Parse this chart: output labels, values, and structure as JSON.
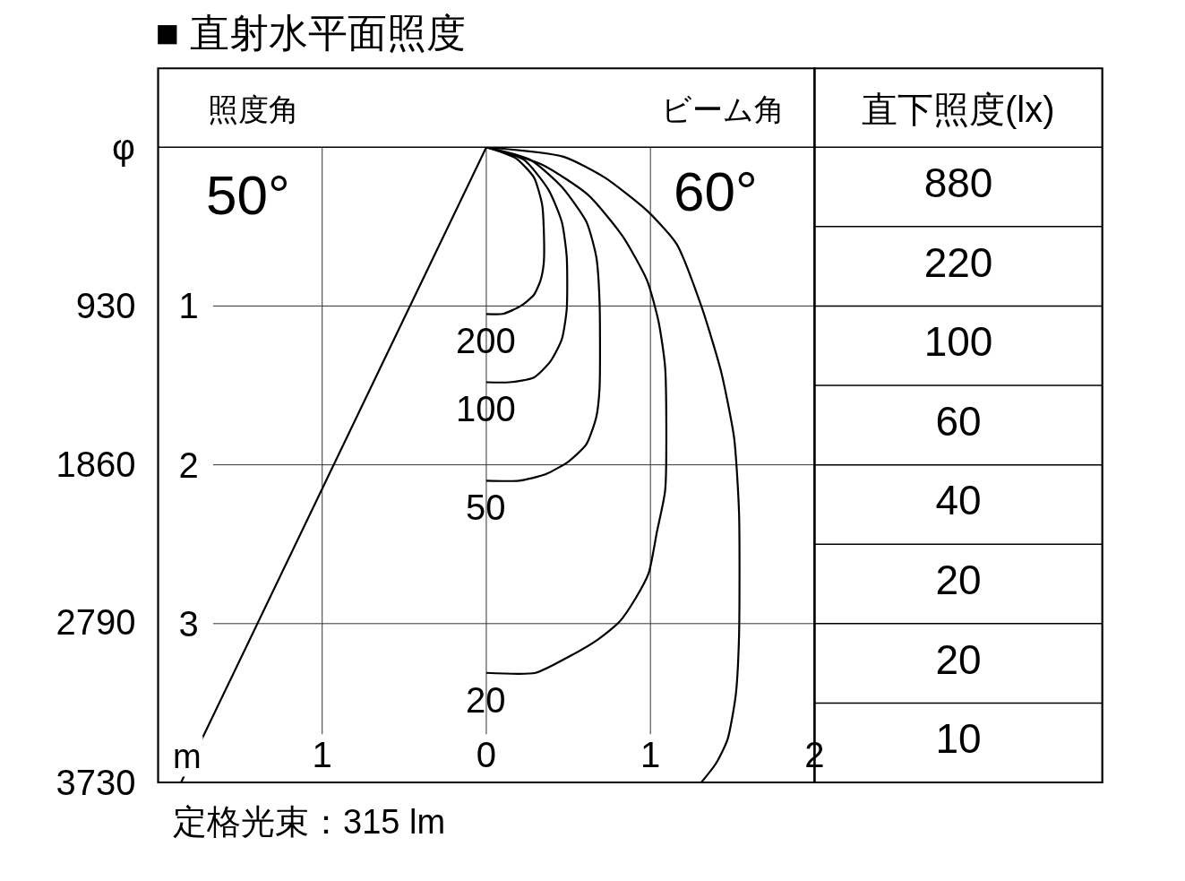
{
  "chart_data": [
    {
      "type": "line",
      "title": "■ 直射水平面照度",
      "xlabel": "m",
      "y2label": "φ",
      "annotations": [
        "照度角",
        "50°",
        "ビーム角",
        "60°",
        "定格光束：315 lm"
      ],
      "xlim": [
        -2,
        2
      ],
      "xticks": [
        {
          "value": -1,
          "label": "1"
        },
        0,
        1,
        2
      ],
      "ylim": [
        4,
        0
      ],
      "yticks": [
        1,
        2,
        3
      ],
      "y2lim": [
        3730,
        0
      ],
      "y2ticks": [
        930,
        1860,
        2790,
        3730
      ],
      "grid": true,
      "series": [
        {
          "name": "200",
          "color": "#000000",
          "x": [
            0,
            0.18,
            0.29,
            0.34,
            0.35,
            0.35,
            0.33,
            0.29,
            0.21,
            0.1,
            0
          ],
          "values": [
            0,
            0.07,
            0.19,
            0.36,
            0.51,
            0.73,
            0.84,
            0.93,
            1.0,
            1.05,
            1.05
          ]
        },
        {
          "name": "100",
          "color": "#000000",
          "x": [
            0,
            0.23,
            0.38,
            0.46,
            0.49,
            0.49,
            0.46,
            0.39,
            0.29,
            0.14,
            0
          ],
          "values": [
            0,
            0.08,
            0.27,
            0.47,
            0.69,
            1.02,
            1.21,
            1.35,
            1.45,
            1.48,
            1.48
          ]
        },
        {
          "name": "50",
          "color": "#000000",
          "x": [
            0,
            0.27,
            0.46,
            0.61,
            0.67,
            0.69,
            0.69,
            0.67,
            0.61,
            0.5,
            0.36,
            0.2,
            0
          ],
          "values": [
            0,
            0.08,
            0.25,
            0.47,
            0.69,
            0.97,
            1.52,
            1.7,
            1.87,
            1.98,
            2.06,
            2.1,
            2.1
          ]
        },
        {
          "name": "20",
          "color": "#000000",
          "x": [
            0,
            0.34,
            0.62,
            0.83,
            0.98,
            1.05,
            1.09,
            1.09,
            1.04,
            0.99,
            0.91,
            0.81,
            0.68,
            0.5,
            0.3,
            0
          ],
          "values": [
            0,
            0.11,
            0.3,
            0.56,
            0.84,
            1.1,
            1.39,
            2.16,
            2.42,
            2.68,
            2.84,
            2.99,
            3.1,
            3.21,
            3.31,
            3.31
          ]
        },
        {
          "color": "#000000",
          "x": [
            0,
            0.47,
            0.72,
            0.98,
            1.16,
            1.31,
            1.43,
            1.51,
            1.54,
            1.54,
            1.52,
            1.47,
            1.4,
            1.31
          ],
          "values": [
            0,
            0.06,
            0.19,
            0.4,
            0.61,
            1.0,
            1.41,
            1.83,
            2.3,
            3.08,
            3.45,
            3.73,
            3.88,
            4.0
          ]
        },
        {
          "color": "#000000",
          "x": [
            0,
            -1.86
          ],
          "values": [
            0,
            4
          ]
        }
      ]
    },
    {
      "type": "other",
      "title": "直下照度(lx)",
      "values": [
        880,
        220,
        100,
        60,
        40,
        20,
        20,
        10
      ],
      "data_labels": true
    }
  ]
}
